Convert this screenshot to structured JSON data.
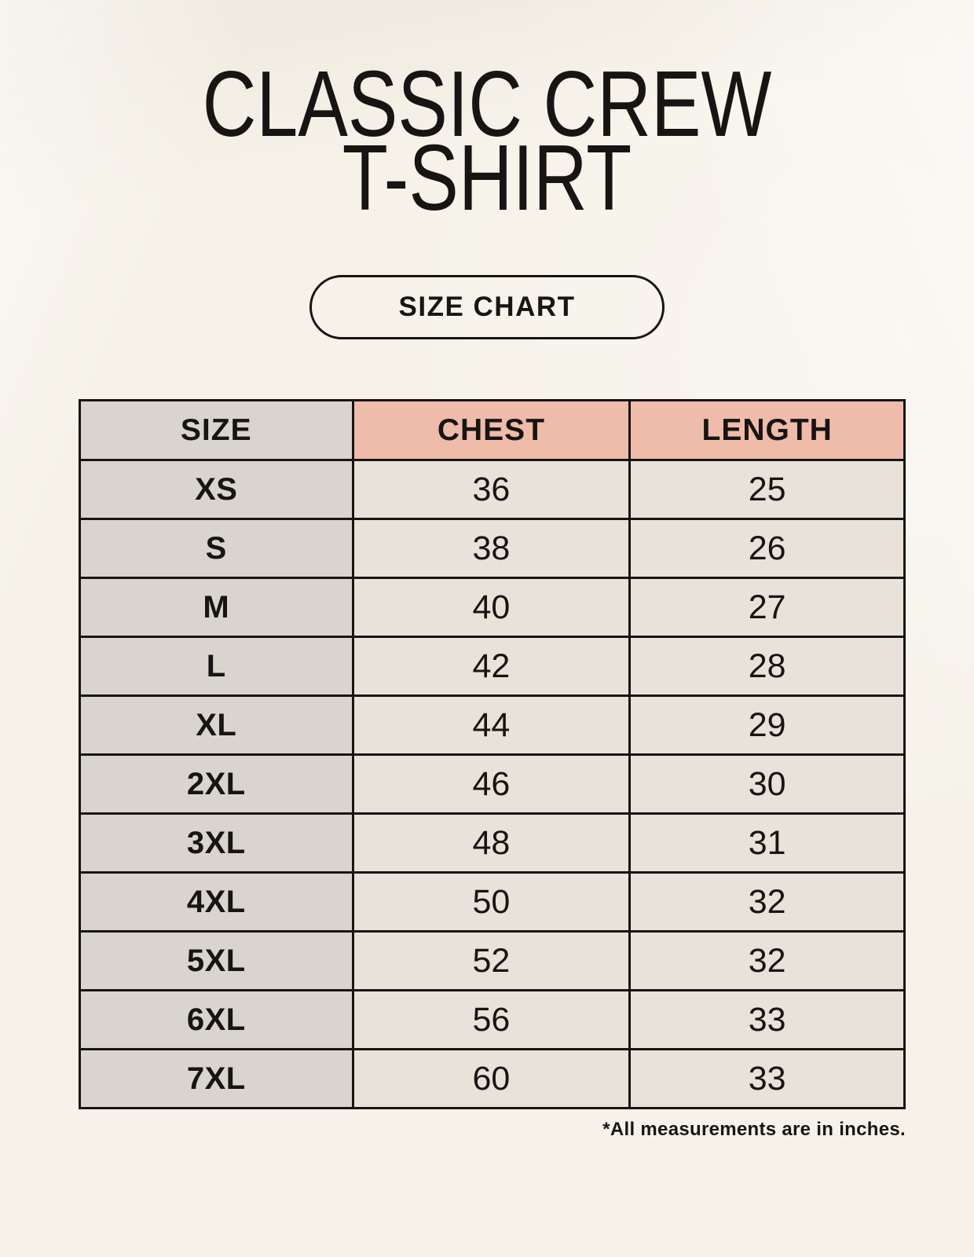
{
  "page": {
    "title_line1": "CLASSIC CREW",
    "title_line2": "T-SHIRT",
    "button_label": "SIZE CHART",
    "footnote": "*All measurements are in inches."
  },
  "table": {
    "headers": [
      "SIZE",
      "CHEST",
      "LENGTH"
    ],
    "rows": [
      [
        "XS",
        "36",
        "25"
      ],
      [
        "S",
        "38",
        "26"
      ],
      [
        "M",
        "40",
        "27"
      ],
      [
        "L",
        "42",
        "28"
      ],
      [
        "XL",
        "44",
        "29"
      ],
      [
        "2XL",
        "46",
        "30"
      ],
      [
        "3XL",
        "48",
        "31"
      ],
      [
        "4XL",
        "50",
        "32"
      ],
      [
        "5XL",
        "52",
        "32"
      ],
      [
        "6XL",
        "56",
        "33"
      ],
      [
        "7XL",
        "60",
        "33"
      ]
    ],
    "units_note": "inches"
  },
  "colors": {
    "page_bg": "#f6f2e9",
    "header_accent": "#efbcaa",
    "size_column_bg": "#dad4cf",
    "cell_bg": "#e9e2d8",
    "border": "#171513",
    "text": "#171513"
  }
}
